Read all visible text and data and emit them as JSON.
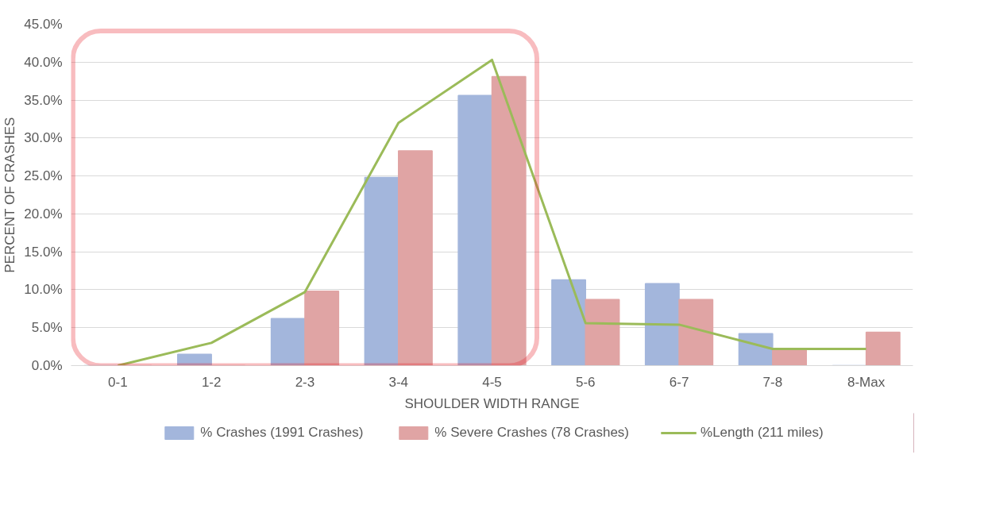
{
  "chart_data": {
    "type": "bar",
    "xlabel": "SHOULDER WIDTH RANGE",
    "ylabel": "PERCENT OF CRASHES",
    "categories": [
      "0-1",
      "1-2",
      "2-3",
      "3-4",
      "4-5",
      "5-6",
      "6-7",
      "7-8",
      "8-Max"
    ],
    "series": [
      {
        "name": "% Crashes (1991 Crashes)",
        "color": "#a3b6dc",
        "values": [
          0,
          1.5,
          6.2,
          24.8,
          35.6,
          11.3,
          10.8,
          4.2,
          0
        ]
      },
      {
        "name": "% Severe Crashes (78 Crashes)",
        "color": "#e0a4a4",
        "values": [
          0,
          0,
          9.8,
          28.3,
          38.1,
          8.7,
          8.7,
          2.2,
          4.4
        ]
      },
      {
        "name": "%Length (211 miles)",
        "type": "line",
        "color": "#9bbb59",
        "values": [
          0,
          3.0,
          9.7,
          32.0,
          40.3,
          5.6,
          5.4,
          2.2,
          2.2
        ]
      }
    ],
    "ylim": [
      0,
      45
    ],
    "yticks": [
      {
        "value": 0,
        "label": "0.0%"
      },
      {
        "value": 5,
        "label": "5.0%"
      },
      {
        "value": 10,
        "label": "10.0%"
      },
      {
        "value": 15,
        "label": "15.0%"
      },
      {
        "value": 20,
        "label": "20.0%"
      },
      {
        "value": 25,
        "label": "25.0%"
      },
      {
        "value": 30,
        "label": "30.0%"
      },
      {
        "value": 35,
        "label": "35.0%"
      },
      {
        "value": 40,
        "label": "40.0%"
      },
      {
        "value": 45,
        "label": "45.0%"
      }
    ],
    "grid": "y",
    "legend": "bottom",
    "marker": "none"
  }
}
